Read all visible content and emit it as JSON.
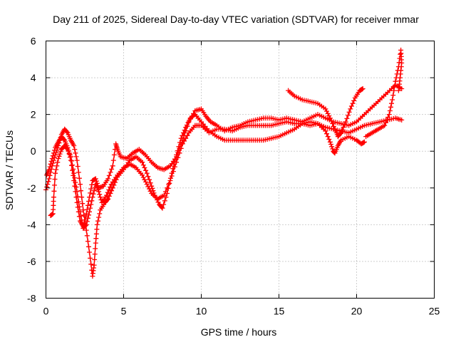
{
  "chart_data": {
    "type": "scatter",
    "title": "Day 211 of 2025, Sidereal Day-to-day VTEC variation (SDTVAR) for receiver mmar",
    "xlabel": "GPS time / hours",
    "ylabel": "SDTVAR / TECUs",
    "xlim": [
      0,
      25
    ],
    "ylim": [
      -8,
      6
    ],
    "xticks": [
      "0",
      "5",
      "10",
      "15",
      "20",
      "25"
    ],
    "yticks": [
      "-8",
      "-6",
      "-4",
      "-2",
      "0",
      "2",
      "4",
      "6"
    ],
    "grid": true,
    "marker": "+",
    "color": "#ff0000",
    "series": [
      {
        "name": "track-a",
        "points": [
          [
            0.0,
            -2.1
          ],
          [
            0.2,
            -1.5
          ],
          [
            0.4,
            -0.8
          ],
          [
            0.6,
            -0.2
          ],
          [
            0.8,
            0.3
          ],
          [
            1.0,
            0.9
          ],
          [
            1.2,
            1.2
          ],
          [
            1.4,
            1.0
          ],
          [
            1.6,
            0.6
          ],
          [
            1.8,
            0.3
          ],
          [
            2.0,
            -0.5
          ],
          [
            2.2,
            -1.8
          ],
          [
            2.4,
            -3.2
          ],
          [
            2.6,
            -4.3
          ],
          [
            2.8,
            -5.5
          ],
          [
            3.0,
            -6.8
          ],
          [
            3.1,
            -6.2
          ],
          [
            3.2,
            -5.0
          ],
          [
            3.3,
            -4.0
          ],
          [
            3.5,
            -3.2
          ],
          [
            3.8,
            -2.8
          ],
          [
            4.0,
            -2.6
          ],
          [
            4.3,
            -2.0
          ],
          [
            4.6,
            -1.4
          ],
          [
            5.0,
            -1.0
          ],
          [
            5.4,
            -0.5
          ],
          [
            5.8,
            -0.3
          ],
          [
            6.2,
            -0.6
          ],
          [
            6.5,
            -1.2
          ],
          [
            6.8,
            -1.9
          ],
          [
            7.0,
            -2.4
          ],
          [
            7.3,
            -2.9
          ],
          [
            7.5,
            -3.1
          ],
          [
            7.8,
            -2.3
          ],
          [
            8.1,
            -1.2
          ],
          [
            8.4,
            -0.2
          ],
          [
            8.7,
            0.7
          ],
          [
            9.0,
            1.3
          ],
          [
            9.3,
            1.8
          ],
          [
            9.6,
            2.0
          ],
          [
            10.0,
            1.6
          ],
          [
            10.5,
            1.1
          ],
          [
            11.0,
            0.8
          ],
          [
            11.5,
            0.6
          ],
          [
            12.0,
            0.6
          ],
          [
            12.5,
            0.6
          ],
          [
            13.0,
            0.6
          ],
          [
            13.5,
            0.6
          ],
          [
            14.0,
            0.6
          ],
          [
            14.5,
            0.7
          ],
          [
            15.0,
            0.8
          ],
          [
            15.5,
            1.0
          ],
          [
            16.0,
            1.2
          ],
          [
            16.5,
            1.5
          ],
          [
            17.0,
            1.6
          ],
          [
            17.5,
            1.5
          ],
          [
            18.0,
            1.1
          ],
          [
            18.3,
            0.5
          ],
          [
            18.5,
            0.0
          ],
          [
            18.6,
            -0.1
          ],
          [
            18.8,
            0.3
          ],
          [
            19.0,
            0.6
          ],
          [
            19.5,
            0.8
          ],
          [
            20.0,
            0.6
          ],
          [
            20.3,
            0.4
          ],
          [
            20.5,
            0.5
          ]
        ]
      },
      {
        "name": "track-b",
        "points": [
          [
            0.3,
            -3.5
          ],
          [
            0.45,
            -3.4
          ],
          [
            0.5,
            -2.5
          ],
          [
            0.6,
            -1.2
          ],
          [
            0.8,
            -0.4
          ],
          [
            1.0,
            0.1
          ],
          [
            1.2,
            0.3
          ],
          [
            1.4,
            0.1
          ],
          [
            1.6,
            -0.3
          ],
          [
            1.8,
            -1.2
          ],
          [
            2.0,
            -2.2
          ],
          [
            2.2,
            -3.3
          ],
          [
            2.4,
            -4.2
          ],
          [
            2.6,
            -4.0
          ],
          [
            2.8,
            -3.3
          ],
          [
            3.0,
            -2.5
          ],
          [
            3.2,
            -1.8
          ],
          [
            3.4,
            -2.2
          ],
          [
            3.6,
            -2.8
          ],
          [
            3.9,
            -2.4
          ],
          [
            4.2,
            -1.8
          ],
          [
            4.6,
            -1.3
          ],
          [
            5.0,
            -0.9
          ],
          [
            5.4,
            -0.7
          ],
          [
            5.8,
            -0.9
          ],
          [
            6.2,
            -1.3
          ],
          [
            6.5,
            -1.8
          ],
          [
            6.8,
            -2.3
          ],
          [
            7.2,
            -2.6
          ],
          [
            7.6,
            -2.4
          ],
          [
            8.0,
            -1.6
          ],
          [
            8.4,
            -0.6
          ],
          [
            8.8,
            0.4
          ],
          [
            9.2,
            1.0
          ],
          [
            9.6,
            1.4
          ],
          [
            10.0,
            1.4
          ],
          [
            10.5,
            1.0
          ],
          [
            11.0,
            1.2
          ],
          [
            11.5,
            1.2
          ],
          [
            12.0,
            1.1
          ],
          [
            12.5,
            1.3
          ],
          [
            13.0,
            1.4
          ],
          [
            13.5,
            1.4
          ],
          [
            14.0,
            1.4
          ],
          [
            14.5,
            1.4
          ],
          [
            15.0,
            1.5
          ],
          [
            15.5,
            1.6
          ],
          [
            16.0,
            1.5
          ],
          [
            16.5,
            1.5
          ],
          [
            17.0,
            1.4
          ],
          [
            17.5,
            1.5
          ],
          [
            18.0,
            1.3
          ],
          [
            18.5,
            1.2
          ],
          [
            19.0,
            1.1
          ],
          [
            19.5,
            1.0
          ],
          [
            20.0,
            1.2
          ],
          [
            20.5,
            1.4
          ],
          [
            21.0,
            1.5
          ],
          [
            21.5,
            1.6
          ],
          [
            22.0,
            1.7
          ],
          [
            22.5,
            1.8
          ],
          [
            22.9,
            1.7
          ]
        ]
      },
      {
        "name": "track-c",
        "points": [
          [
            0.05,
            -1.3
          ],
          [
            0.2,
            -1.0
          ],
          [
            0.4,
            -0.4
          ],
          [
            0.6,
            0.2
          ],
          [
            0.8,
            0.5
          ],
          [
            1.0,
            0.8
          ],
          [
            1.2,
            0.6
          ],
          [
            1.4,
            0.2
          ],
          [
            1.6,
            -0.5
          ],
          [
            1.8,
            -1.6
          ],
          [
            2.0,
            -2.8
          ],
          [
            2.2,
            -3.8
          ],
          [
            2.4,
            -4.1
          ],
          [
            2.6,
            -3.4
          ],
          [
            2.8,
            -2.5
          ],
          [
            3.0,
            -1.6
          ],
          [
            3.2,
            -1.5
          ],
          [
            3.4,
            -2.0
          ],
          [
            3.7,
            -1.9
          ],
          [
            4.0,
            -1.5
          ],
          [
            4.3,
            -0.8
          ],
          [
            4.5,
            0.4
          ],
          [
            4.6,
            0.1
          ],
          [
            4.8,
            -0.3
          ],
          [
            5.2,
            -0.4
          ],
          [
            5.6,
            -0.1
          ],
          [
            6.0,
            0.1
          ],
          [
            6.4,
            -0.2
          ],
          [
            6.8,
            -0.6
          ],
          [
            7.2,
            -0.9
          ],
          [
            7.6,
            -1.0
          ],
          [
            8.0,
            -0.8
          ],
          [
            8.4,
            -0.3
          ],
          [
            8.8,
            0.6
          ],
          [
            9.2,
            1.6
          ],
          [
            9.6,
            2.2
          ],
          [
            10.0,
            2.3
          ],
          [
            10.3,
            1.9
          ],
          [
            10.6,
            1.6
          ],
          [
            11.0,
            1.4
          ],
          [
            11.5,
            1.1
          ],
          [
            12.0,
            1.3
          ],
          [
            12.5,
            1.4
          ],
          [
            13.0,
            1.6
          ],
          [
            13.5,
            1.7
          ],
          [
            14.0,
            1.8
          ],
          [
            14.5,
            1.8
          ],
          [
            15.0,
            1.7
          ],
          [
            15.5,
            1.8
          ],
          [
            16.0,
            1.7
          ],
          [
            16.5,
            1.6
          ],
          [
            17.0,
            1.8
          ],
          [
            17.5,
            2.0
          ],
          [
            18.0,
            1.8
          ],
          [
            18.5,
            1.6
          ],
          [
            19.0,
            1.5
          ],
          [
            19.5,
            1.4
          ],
          [
            20.0,
            1.6
          ],
          [
            20.5,
            2.0
          ],
          [
            21.0,
            2.4
          ],
          [
            21.5,
            2.8
          ],
          [
            22.0,
            3.2
          ],
          [
            22.5,
            3.6
          ],
          [
            22.9,
            3.4
          ]
        ]
      },
      {
        "name": "track-d",
        "points": [
          [
            15.6,
            3.3
          ],
          [
            16.0,
            3.0
          ],
          [
            16.5,
            2.8
          ],
          [
            17.0,
            2.7
          ],
          [
            17.5,
            2.6
          ],
          [
            18.0,
            2.3
          ],
          [
            18.3,
            1.8
          ],
          [
            18.6,
            1.2
          ],
          [
            18.8,
            0.8
          ],
          [
            19.0,
            1.0
          ],
          [
            19.3,
            1.6
          ],
          [
            19.6,
            2.3
          ],
          [
            19.9,
            2.9
          ],
          [
            20.2,
            3.3
          ],
          [
            20.4,
            3.4
          ]
        ]
      },
      {
        "name": "track-e",
        "points": [
          [
            20.6,
            0.8
          ],
          [
            21.0,
            1.0
          ],
          [
            21.4,
            1.2
          ],
          [
            21.8,
            1.4
          ],
          [
            22.1,
            2.0
          ],
          [
            22.3,
            2.8
          ],
          [
            22.5,
            3.8
          ],
          [
            22.7,
            4.6
          ],
          [
            22.85,
            5.5
          ],
          [
            22.9,
            4.8
          ],
          [
            22.8,
            4.0
          ],
          [
            22.7,
            3.3
          ]
        ]
      }
    ]
  }
}
